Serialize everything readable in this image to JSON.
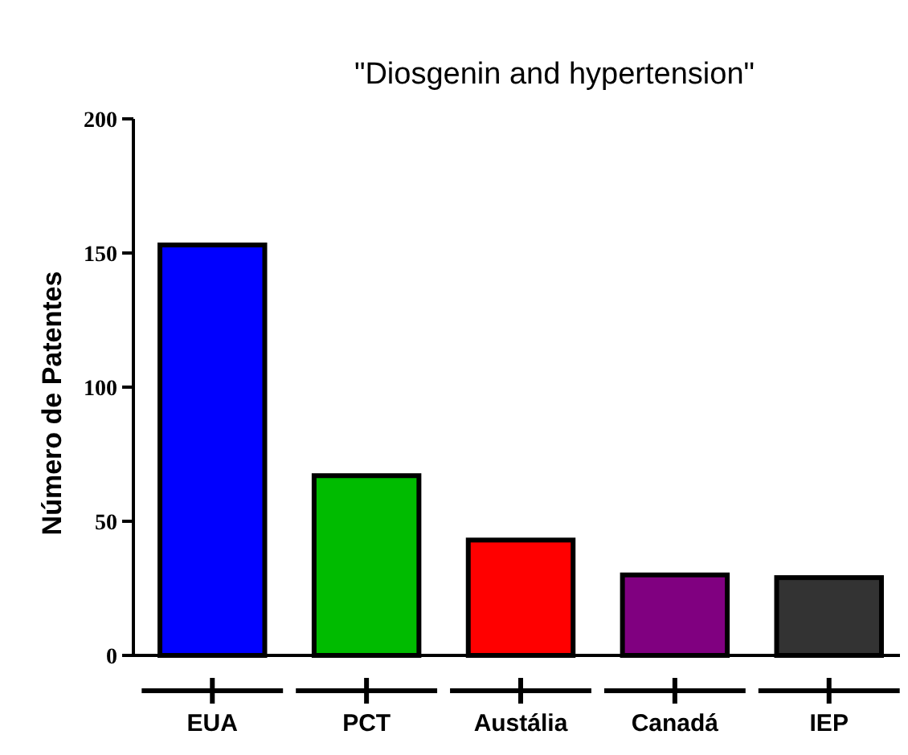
{
  "chart_data": {
    "type": "bar",
    "title": "\"Diosgenin and hypertension\"",
    "ylabel": "Número de Patentes",
    "categories": [
      "EUA",
      "PCT",
      "Austália",
      "Canadá",
      "IEP"
    ],
    "values": [
      153,
      67,
      43,
      30,
      29
    ],
    "colors": [
      "#0000ff",
      "#00bb00",
      "#ff0000",
      "#800080",
      "#333333"
    ],
    "ylim": [
      0,
      200
    ],
    "yticks": [
      0,
      50,
      100,
      150,
      200
    ],
    "grid": false
  }
}
